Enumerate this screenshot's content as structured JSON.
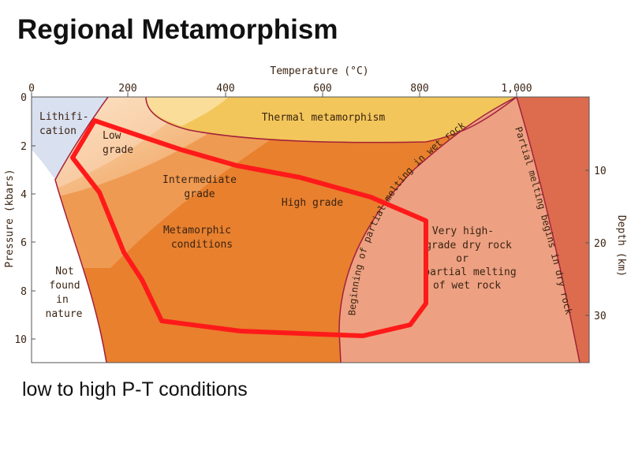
{
  "title": "Regional Metamorphism",
  "caption": "low to  high P-T conditions",
  "diagram": {
    "top_axis_label": "Temperature (°C)",
    "top_ticks": [
      "0",
      "200",
      "400",
      "600",
      "800",
      "1,000"
    ],
    "left_axis_label": "Pressure (kbars)",
    "left_ticks": [
      "0",
      "2",
      "4",
      "6",
      "8",
      "10"
    ],
    "right_axis_label": "Depth (km)",
    "right_ticks": [
      "10",
      "20",
      "30"
    ],
    "zones": {
      "lithification": [
        "Lithifi-",
        "cation"
      ],
      "low_grade": [
        "Low",
        "grade"
      ],
      "thermal": "Thermal metamorphism",
      "intermediate": [
        "Intermediate",
        "grade"
      ],
      "high_grade": "High grade",
      "metamorphic_conditions": [
        "Metamorphic",
        "conditions"
      ],
      "not_found": [
        "Not",
        "found",
        "in",
        "nature"
      ],
      "very_high": [
        "Very high-",
        "grade dry rock",
        "or",
        "partial melting",
        "of wet rock"
      ],
      "wet_melting": "Beginning of partial melting in wet rock",
      "dry_melting": "Partial melting begins in dry rock"
    },
    "colors": {
      "lithification": "#d9e0f0",
      "not_found": "#ffffff",
      "low_grade": "#f4b383",
      "thermal": "#f2c65a",
      "intermediate": "#ef9a52",
      "high_grade": "#e8802e",
      "very_high": "#eda182",
      "dry_region": "#dd6c4e",
      "highlight": "#ff1a1a",
      "boundary": "#a3203a"
    }
  }
}
